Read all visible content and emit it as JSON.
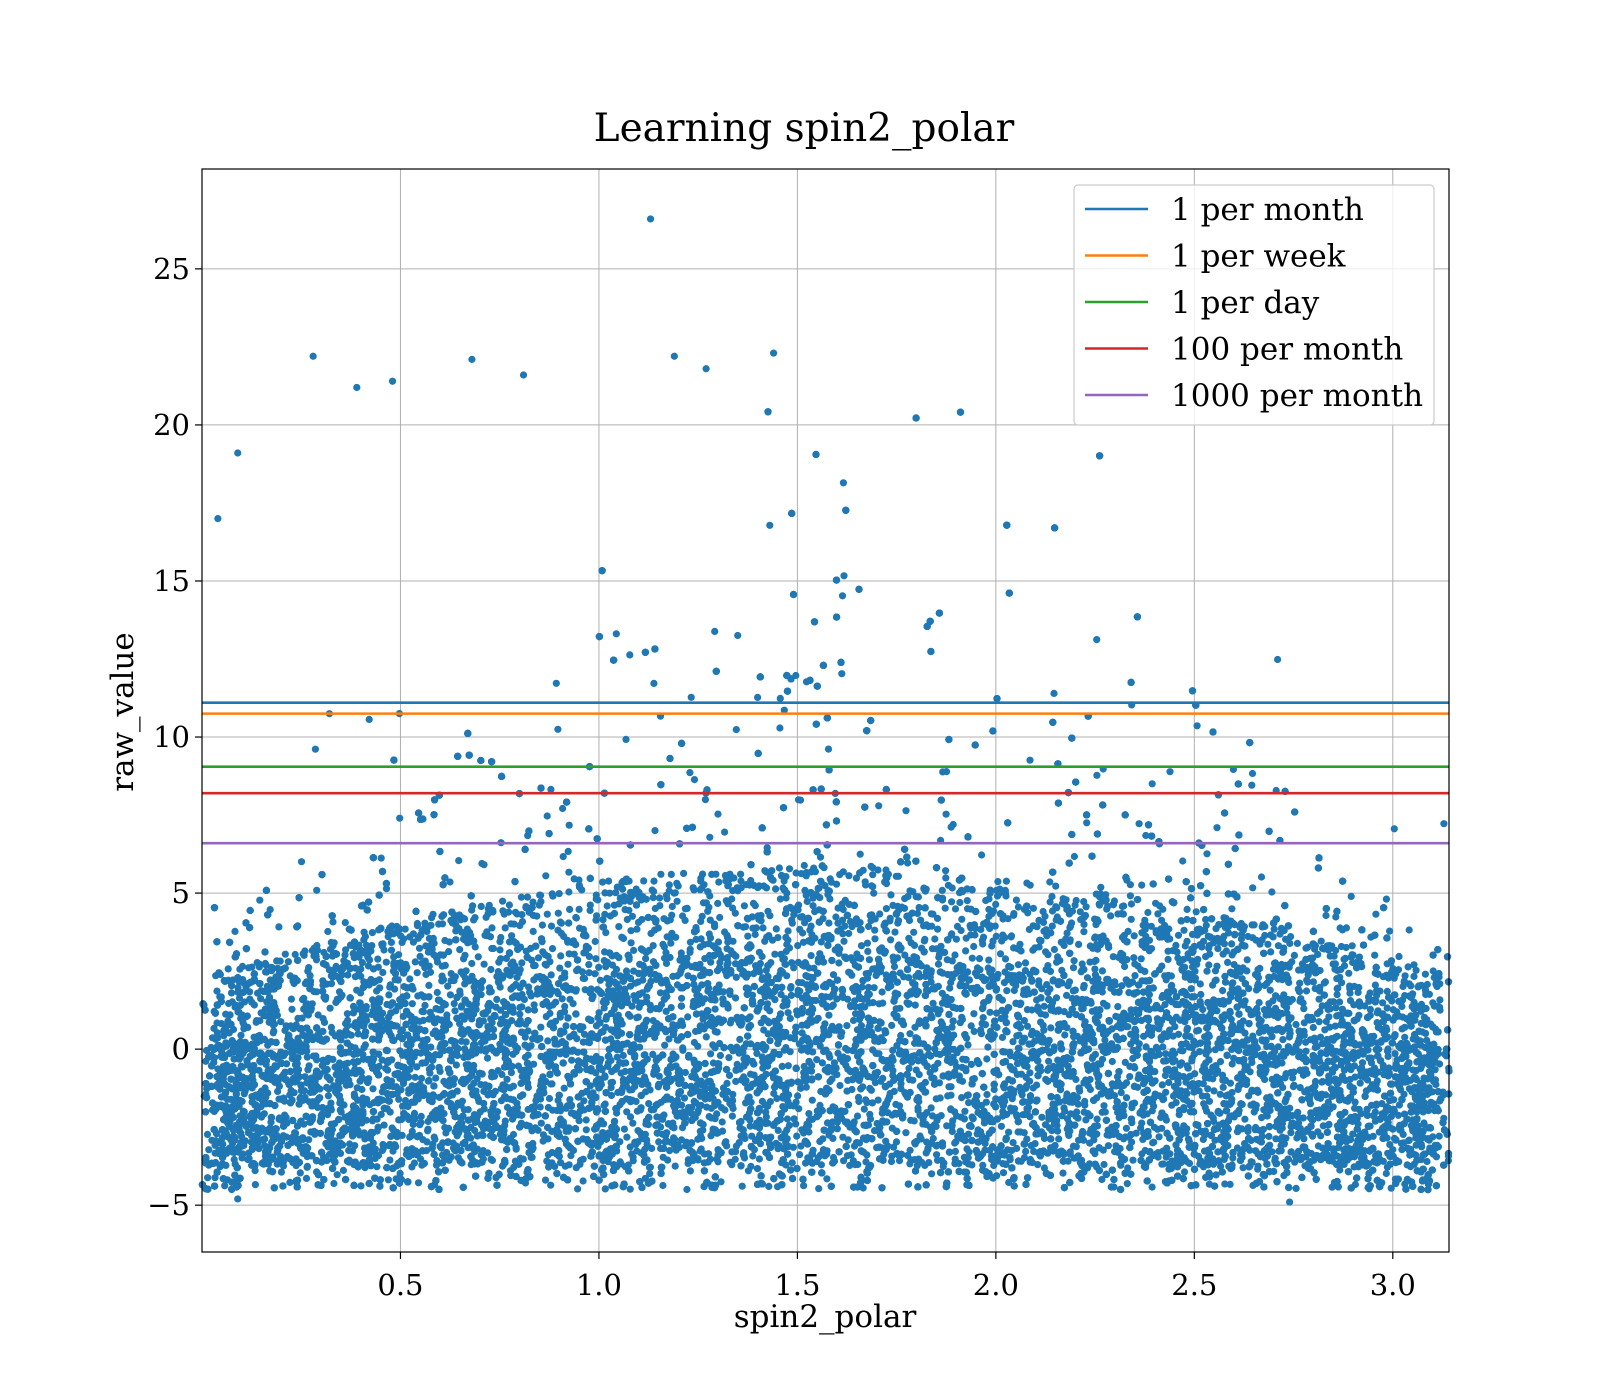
{
  "chart_data": {
    "type": "scatter",
    "title": "Learning spin2_polar",
    "xlabel": "spin2_polar",
    "ylabel": "raw_value",
    "xlim": [
      0.0,
      3.1416
    ],
    "ylim": [
      -6.5,
      28.2
    ],
    "xticks": [
      0.5,
      1.0,
      1.5,
      2.0,
      2.5,
      3.0
    ],
    "xtick_labels": [
      "0.5",
      "1.0",
      "1.5",
      "2.0",
      "2.5",
      "3.0"
    ],
    "yticks": [
      -5,
      0,
      5,
      10,
      15,
      20,
      25
    ],
    "ytick_labels": [
      "−5",
      "0",
      "5",
      "10",
      "15",
      "20",
      "25"
    ],
    "grid": true,
    "legend_position": "top-right",
    "point_color": "#1f77b4",
    "scatter_series": {
      "x_range": [
        0.0,
        3.1416
      ],
      "dense_band_y_range": [
        -4.5,
        3.0
      ],
      "max_outlier": {
        "x": 1.13,
        "y": 26.6
      },
      "notable_points": [
        {
          "x": 0.28,
          "y": 22.2
        },
        {
          "x": 0.68,
          "y": 22.1
        },
        {
          "x": 1.19,
          "y": 22.2
        },
        {
          "x": 1.44,
          "y": 22.3
        },
        {
          "x": 1.27,
          "y": 21.8
        },
        {
          "x": 0.81,
          "y": 21.6
        },
        {
          "x": 0.39,
          "y": 21.2
        },
        {
          "x": 0.48,
          "y": 21.4
        },
        {
          "x": 0.09,
          "y": 19.1
        },
        {
          "x": 0.04,
          "y": 17.0
        },
        {
          "x": 2.74,
          "y": -4.9
        },
        {
          "x": 0.09,
          "y": -4.8
        }
      ]
    },
    "series": [
      {
        "name": "1 per month",
        "y": 11.1,
        "color": "#1f77b4"
      },
      {
        "name": "1 per week",
        "y": 10.75,
        "color": "#ff7f0e"
      },
      {
        "name": "1 per day",
        "y": 9.05,
        "color": "#2ca02c"
      },
      {
        "name": "100 per month",
        "y": 8.2,
        "color": "#d62728"
      },
      {
        "name": "1000 per month",
        "y": 6.6,
        "color": "#9467bd"
      }
    ]
  }
}
